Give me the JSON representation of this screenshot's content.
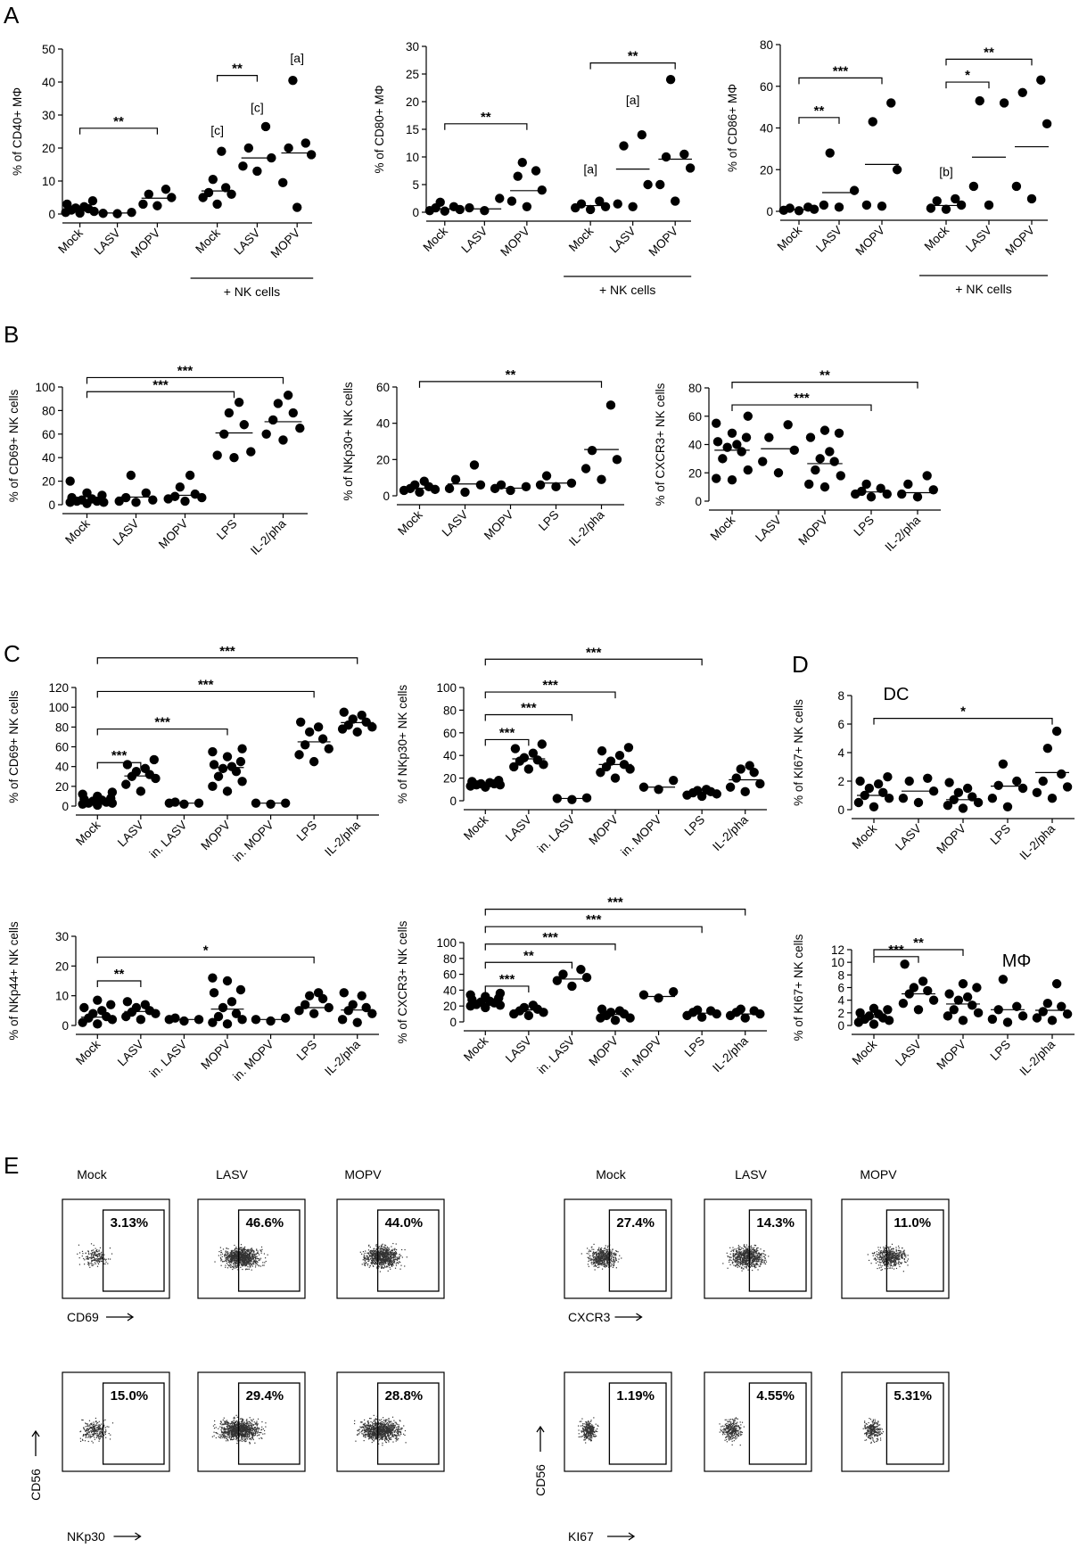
{
  "panel_letters": [
    "A",
    "B",
    "C",
    "D",
    "E"
  ],
  "chart_data": [
    {
      "id": "A1",
      "panel": "A",
      "type": "scatter",
      "ylabel": "% of CD40+ MΦ",
      "ylim": [
        0,
        50
      ],
      "yticks": [
        0,
        10,
        20,
        30,
        40,
        50
      ],
      "categories": [
        "Mock",
        "LASV",
        "MOPV",
        "Mock",
        "LASV",
        "MOPV"
      ],
      "group_label": "+ NK cells",
      "group_span": [
        3,
        5
      ],
      "points": [
        [
          0.3,
          0.8,
          1.2,
          1.6,
          2.2,
          3.0,
          4.0,
          0.5,
          1.8
        ],
        [
          0.2,
          0.5,
          0.1
        ],
        [
          3.0,
          5.0,
          6.0,
          7.5,
          2.5
        ],
        [
          5.0,
          6.5,
          8.0,
          10.5,
          19.0,
          3.0,
          6.0
        ],
        [
          13.0,
          17.0,
          20.0,
          26.5,
          14.5
        ],
        [
          18.0,
          20.0,
          21.5,
          40.5,
          9.5,
          2.0
        ]
      ],
      "means": [
        1.5,
        0.3,
        4.8,
        7.0,
        17.0,
        18.5
      ],
      "brackets": [
        {
          "from": 0,
          "to": 2,
          "y": 26,
          "label": "**"
        },
        {
          "from": 3,
          "to": 4,
          "y": 42,
          "label": "**"
        }
      ],
      "annotations": [
        {
          "cat": 3,
          "y": 24,
          "text": "[c]"
        },
        {
          "cat": 4,
          "y": 31,
          "text": "[c]"
        },
        {
          "cat": 5,
          "y": 46,
          "text": "[a]"
        }
      ]
    },
    {
      "id": "A2",
      "panel": "A",
      "type": "scatter",
      "ylabel": "% of CD80+ MΦ",
      "ylim": [
        0,
        30
      ],
      "yticks": [
        0,
        5,
        10,
        15,
        20,
        25,
        30
      ],
      "categories": [
        "Mock",
        "LASV",
        "MOPV",
        "Mock",
        "LASV",
        "MOPV"
      ],
      "group_label": "+ NK cells",
      "group_span": [
        3,
        5
      ],
      "points": [
        [
          0.2,
          0.5,
          1.0,
          1.8,
          0.3,
          0.8
        ],
        [
          0.3,
          0.8,
          2.5
        ],
        [
          2.0,
          4.0,
          6.5,
          9.0,
          7.5,
          1.0
        ],
        [
          0.5,
          1.0,
          1.5,
          2.0,
          0.8
        ],
        [
          1.0,
          12.0,
          14.0,
          1.5,
          5.0
        ],
        [
          24.0,
          10.0,
          8.0,
          2.0,
          5.0,
          10.5
        ]
      ],
      "means": [
        0.6,
        0.6,
        3.9,
        1.2,
        7.8,
        9.6
      ],
      "brackets": [
        {
          "from": 0,
          "to": 2,
          "y": 16,
          "label": "**"
        },
        {
          "from": 3,
          "to": 5,
          "y": 27,
          "label": "**"
        }
      ],
      "annotations": [
        {
          "cat": 3,
          "y": 7,
          "text": "[a]"
        },
        {
          "cat": 4,
          "y": 19.5,
          "text": "[a]"
        }
      ]
    },
    {
      "id": "A3",
      "panel": "A",
      "type": "scatter",
      "ylabel": "% of CD86+ MΦ",
      "ylim": [
        0,
        80
      ],
      "yticks": [
        0,
        20,
        40,
        60,
        80
      ],
      "categories": [
        "Mock",
        "LASV",
        "MOPV",
        "Mock",
        "LASV",
        "MOPV"
      ],
      "group_label": "+ NK cells",
      "group_span": [
        3,
        5
      ],
      "points": [
        [
          0.3,
          1.0,
          2.0,
          0.5,
          1.5
        ],
        [
          2.0,
          10.0,
          28.0,
          3.0
        ],
        [
          3.0,
          43.0,
          52.0,
          20.0,
          2.5
        ],
        [
          1.0,
          3.0,
          5.0,
          6.0,
          1.5
        ],
        [
          12.0,
          52.0,
          53.0,
          3.0
        ],
        [
          42.0,
          57.0,
          63.0,
          12.0,
          6.0
        ]
      ],
      "means": [
        0.8,
        9.0,
        22.5,
        2.8,
        26.0,
        31.0
      ],
      "brackets": [
        {
          "from": 0,
          "to": 1,
          "y": 45,
          "label": "**"
        },
        {
          "from": 0,
          "to": 2,
          "y": 64,
          "label": "***"
        },
        {
          "from": 3,
          "to": 4,
          "y": 62,
          "label": "*"
        },
        {
          "from": 3,
          "to": 5,
          "y": 73,
          "label": "**"
        }
      ],
      "annotations": [
        {
          "cat": 3,
          "y": 17,
          "text": "[b]"
        }
      ]
    },
    {
      "id": "B1",
      "panel": "B",
      "type": "scatter",
      "ylabel": "% of CD69+ NK cells",
      "ylim": [
        0,
        100
      ],
      "yticks": [
        0,
        20,
        40,
        60,
        80,
        100
      ],
      "categories": [
        "Mock",
        "LASV",
        "MOPV",
        "LPS",
        "IL-2/pha"
      ],
      "points": [
        [
          1,
          2,
          3,
          4,
          5,
          6,
          8,
          10,
          20,
          2,
          3
        ],
        [
          2,
          4,
          6,
          10,
          25,
          3
        ],
        [
          3,
          5,
          7,
          9,
          15,
          25,
          6
        ],
        [
          40,
          42,
          60,
          68,
          78,
          87,
          45
        ],
        [
          55,
          60,
          65,
          72,
          78,
          86,
          93
        ]
      ],
      "means": [
        4.5,
        6.5,
        8,
        61,
        70.5
      ],
      "brackets": [
        {
          "from": 0,
          "to": 3,
          "y": 96,
          "label": "***"
        },
        {
          "from": 0,
          "to": 4,
          "y": 108,
          "label": "***"
        }
      ]
    },
    {
      "id": "B2",
      "panel": "B",
      "type": "scatter",
      "ylabel": "% of NKp30+ NK cells",
      "ylim": [
        0,
        60
      ],
      "yticks": [
        0,
        20,
        40,
        60
      ],
      "categories": [
        "Mock",
        "LASV",
        "MOPV",
        "LPS",
        "IL-2/pha"
      ],
      "points": [
        [
          2,
          3,
          4,
          5,
          6,
          8,
          3.5
        ],
        [
          2,
          4,
          6,
          9,
          17
        ],
        [
          3,
          4,
          5,
          6
        ],
        [
          5,
          6,
          7,
          11
        ],
        [
          9,
          15,
          20,
          25,
          50
        ]
      ],
      "means": [
        4.2,
        6.5,
        4.2,
        7,
        25.5
      ],
      "brackets": [
        {
          "from": 0,
          "to": 4,
          "y": 63,
          "label": "**"
        }
      ]
    },
    {
      "id": "B3",
      "panel": "B",
      "type": "scatter",
      "ylabel": "% of CXCR3+ NK cells",
      "ylim": [
        0,
        80
      ],
      "yticks": [
        0,
        20,
        40,
        60,
        80
      ],
      "categories": [
        "Mock",
        "LASV",
        "MOPV",
        "LPS",
        "IL-2/pha"
      ],
      "points": [
        [
          15,
          22,
          30,
          35,
          38,
          40,
          42,
          45,
          48,
          55,
          60,
          16
        ],
        [
          20,
          28,
          36,
          45,
          54
        ],
        [
          10,
          12,
          18,
          22,
          28,
          35,
          45,
          48,
          50,
          30
        ],
        [
          3,
          5,
          7,
          9,
          12,
          5
        ],
        [
          3,
          5,
          8,
          12,
          18
        ]
      ],
      "means": [
        36,
        37,
        26.5,
        6.5,
        6
      ],
      "brackets": [
        {
          "from": 0,
          "to": 3,
          "y": 68,
          "label": "***"
        },
        {
          "from": 0,
          "to": 4,
          "y": 84,
          "label": "**"
        }
      ]
    },
    {
      "id": "C1",
      "panel": "C",
      "type": "scatter",
      "ylabel": "% of CD69+ NK cells",
      "ylim": [
        0,
        120
      ],
      "yticks": [
        0,
        20,
        40,
        60,
        80,
        100,
        120
      ],
      "categories": [
        "Mock",
        "LASV",
        "in. LASV",
        "MOPV",
        "in. MOPV",
        "LPS",
        "IL-2/pha"
      ],
      "points": [
        [
          2,
          3,
          4,
          5,
          6,
          8,
          10,
          12,
          14,
          1,
          3,
          7
        ],
        [
          15,
          22,
          28,
          32,
          35,
          38,
          42,
          47,
          30
        ],
        [
          2,
          3,
          4,
          3
        ],
        [
          15,
          20,
          25,
          30,
          35,
          40,
          45,
          50,
          55,
          58,
          38,
          42
        ],
        [
          2,
          3,
          3
        ],
        [
          45,
          52,
          58,
          62,
          68,
          75,
          80,
          85
        ],
        [
          75,
          80,
          82,
          85,
          88,
          92,
          95,
          78
        ]
      ],
      "means": [
        5,
        30.5,
        3,
        39,
        3,
        65,
        84.5
      ],
      "brackets": [
        {
          "from": 0,
          "to": 1,
          "y": 44,
          "label": "***"
        },
        {
          "from": 0,
          "to": 3,
          "y": 78,
          "label": "***"
        },
        {
          "from": 0,
          "to": 5,
          "y": 116,
          "label": "***"
        },
        {
          "from": 0,
          "to": 6,
          "y": 150,
          "label": "***"
        }
      ]
    },
    {
      "id": "C2",
      "panel": "C",
      "type": "scatter",
      "ylabel": "% of NKp30+ NK cells",
      "ylim": [
        0,
        100
      ],
      "yticks": [
        0,
        20,
        40,
        60,
        80,
        100
      ],
      "categories": [
        "Mock",
        "LASV",
        "in. LASV",
        "MOPV",
        "in. MOPV",
        "LPS",
        "IL-2/pha"
      ],
      "points": [
        [
          12,
          13,
          14,
          15,
          16,
          17,
          18,
          14,
          15
        ],
        [
          28,
          32,
          35,
          38,
          42,
          46,
          50,
          36,
          30
        ],
        [
          1,
          2,
          2.5
        ],
        [
          20,
          25,
          28,
          30,
          35,
          40,
          44,
          47,
          32
        ],
        [
          10,
          12,
          18
        ],
        [
          4,
          5,
          6,
          7,
          8,
          9,
          10
        ],
        [
          8,
          12,
          15,
          20,
          25,
          28,
          31
        ]
      ],
      "means": [
        15,
        37,
        2,
        32,
        12,
        6,
        18.5
      ],
      "brackets": [
        {
          "from": 0,
          "to": 1,
          "y": 54,
          "label": "***"
        },
        {
          "from": 0,
          "to": 2,
          "y": 76,
          "label": "***"
        },
        {
          "from": 0,
          "to": 3,
          "y": 96,
          "label": "***"
        },
        {
          "from": 0,
          "to": 5,
          "y": 125,
          "label": "***"
        }
      ]
    },
    {
      "id": "C3",
      "panel": "C",
      "type": "scatter",
      "ylabel": "% of NKp44+ NK cells",
      "ylim": [
        0,
        30
      ],
      "yticks": [
        0,
        10,
        20,
        30
      ],
      "categories": [
        "Mock",
        "LASV",
        "in. LASV",
        "MOPV",
        "in. MOPV",
        "LPS",
        "IL-2/pha"
      ],
      "points": [
        [
          0.5,
          1,
          2,
          3,
          4,
          5,
          6,
          7,
          8.5,
          2.5
        ],
        [
          2,
          3,
          4,
          5,
          6,
          7,
          8,
          4.5
        ],
        [
          1.5,
          2,
          2.5,
          2
        ],
        [
          0.5,
          1,
          2,
          3,
          4,
          6,
          8,
          11,
          12,
          15,
          16
        ],
        [
          1.5,
          2,
          2.5
        ],
        [
          4,
          5,
          6,
          7,
          9,
          10,
          11
        ],
        [
          1,
          2,
          4,
          5,
          7,
          10,
          11,
          6
        ]
      ],
      "means": [
        2.8,
        4.7,
        2,
        5.5,
        2,
        6,
        5.2
      ],
      "brackets": [
        {
          "from": 0,
          "to": 1,
          "y": 15,
          "label": "**"
        },
        {
          "from": 0,
          "to": 5,
          "y": 23,
          "label": "*"
        }
      ]
    },
    {
      "id": "C4",
      "panel": "C",
      "type": "scatter",
      "ylabel": "% of CXCR3+ NK cells",
      "ylim": [
        0,
        100
      ],
      "yticks": [
        0,
        20,
        40,
        60,
        80,
        100
      ],
      "categories": [
        "Mock",
        "LASV",
        "in. LASV",
        "MOPV",
        "in. MOPV",
        "LPS",
        "IL-2/pha"
      ],
      "points": [
        [
          18,
          20,
          22,
          24,
          26,
          28,
          30,
          32,
          34,
          36,
          25,
          21
        ],
        [
          8,
          10,
          12,
          14,
          16,
          18,
          21
        ],
        [
          45,
          52,
          56,
          60,
          66
        ],
        [
          2,
          5,
          8,
          10,
          12,
          14,
          16,
          5
        ],
        [
          30,
          34,
          38
        ],
        [
          6,
          8,
          10,
          12,
          14,
          15
        ],
        [
          5,
          8,
          10,
          12,
          14,
          16
        ]
      ],
      "means": [
        26.5,
        15,
        54,
        9.5,
        32,
        11,
        10
      ],
      "brackets": [
        {
          "from": 0,
          "to": 1,
          "y": 45,
          "label": "***"
        },
        {
          "from": 0,
          "to": 2,
          "y": 75,
          "label": "**"
        },
        {
          "from": 0,
          "to": 3,
          "y": 98,
          "label": "***"
        },
        {
          "from": 0,
          "to": 5,
          "y": 120,
          "label": "***"
        },
        {
          "from": 0,
          "to": 6,
          "y": 142,
          "label": "***"
        }
      ]
    },
    {
      "id": "D1",
      "panel": "D",
      "type": "scatter",
      "ylabel": "% of KI67+ NK cells",
      "ylim": [
        0,
        8
      ],
      "yticks": [
        0,
        2,
        4,
        6,
        8
      ],
      "categories": [
        "Mock",
        "LASV",
        "MOPV",
        "LPS",
        "IL-2/pha"
      ],
      "inset_label": "DC",
      "points": [
        [
          0.2,
          0.5,
          0.8,
          1.0,
          1.2,
          1.5,
          1.8,
          2.0,
          2.3
        ],
        [
          0.5,
          0.8,
          1.3,
          2.0,
          2.2
        ],
        [
          0.1,
          0.3,
          0.5,
          0.7,
          0.9,
          1.2,
          1.5,
          1.9
        ],
        [
          0.2,
          0.8,
          1.5,
          1.7,
          2.0,
          3.2
        ],
        [
          0.8,
          1.2,
          2.0,
          2.5,
          4.3,
          5.5,
          1.6
        ]
      ],
      "means": [
        1.0,
        1.3,
        0.7,
        1.65,
        2.6
      ],
      "brackets": [
        {
          "from": 0,
          "to": 4,
          "y": 6.4,
          "label": "*"
        }
      ]
    },
    {
      "id": "D2",
      "panel": "D",
      "type": "scatter",
      "ylabel": "% of KI67+ NK cells",
      "ylim": [
        0,
        12
      ],
      "yticks": [
        0,
        2,
        4,
        6,
        8,
        10,
        12
      ],
      "categories": [
        "Mock",
        "LASV",
        "MOPV",
        "LPS",
        "IL-2/pha"
      ],
      "inset_label": "MΦ",
      "points": [
        [
          0.2,
          0.5,
          0.8,
          1.0,
          1.2,
          1.5,
          1.8,
          2.0,
          2.5,
          2.7
        ],
        [
          2.5,
          3.5,
          4.0,
          5.0,
          5.5,
          6.0,
          7.0,
          9.7
        ],
        [
          0.8,
          1.5,
          2.0,
          2.5,
          3.2,
          4.0,
          4.5,
          5.0,
          6.0,
          6.6
        ],
        [
          0.5,
          1.0,
          1.5,
          2.5,
          3.0,
          7.3
        ],
        [
          0.8,
          1.2,
          1.8,
          2.2,
          3.0,
          3.5,
          6.6
        ]
      ],
      "means": [
        1.3,
        5.0,
        3.4,
        2.5,
        2.4
      ],
      "brackets": [
        {
          "from": 0,
          "to": 1,
          "y": 10.9,
          "label": "***"
        },
        {
          "from": 0,
          "to": 2,
          "y": 12.0,
          "label": "**"
        }
      ]
    }
  ],
  "facs": {
    "column_titles": [
      "Mock",
      "LASV",
      "MOPV"
    ],
    "left_top": {
      "percents": [
        "3.13%",
        "46.6%",
        "44.0%"
      ],
      "x_marker": "CD69"
    },
    "left_bottom": {
      "percents": [
        "15.0%",
        "29.4%",
        "28.8%"
      ],
      "x_marker": "NKp30",
      "y_marker": "CD56"
    },
    "right_top": {
      "percents": [
        "27.4%",
        "14.3%",
        "11.0%"
      ],
      "x_marker": "CXCR3"
    },
    "right_bottom": {
      "percents": [
        "1.19%",
        "4.55%",
        "5.31%"
      ],
      "x_marker": "KI67",
      "y_marker": "CD56"
    }
  }
}
